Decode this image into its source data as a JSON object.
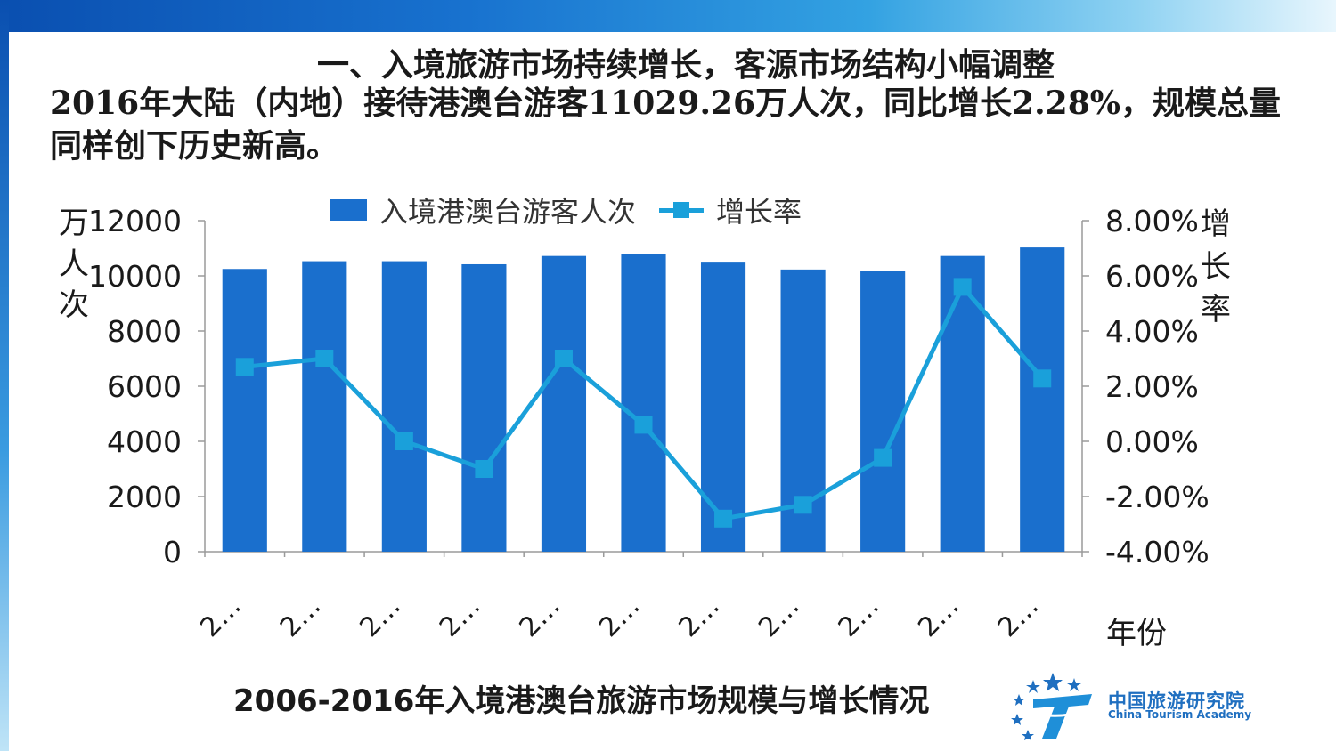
{
  "headline": "一、入境旅游市场持续增长，客源市场结构小幅调整",
  "subtext": "2016年大陆（内地）接待港澳台游客11029.26万人次，同比增长2.28%，规模总量同样创下历史新高。",
  "caption": "2006-2016年入境港澳台旅游市场规模与增长情况",
  "logo": {
    "cn": "中国旅游研究院",
    "en": "China Tourism Academy"
  },
  "colors": {
    "bar": "#1a6fcd",
    "line": "#1aa0da",
    "axis": "#9a9a9a"
  },
  "chart_data": {
    "type": "bar",
    "ylabel": "万人次",
    "y2label": "增长率",
    "xlabel": "年份",
    "ylim": [
      0,
      12000
    ],
    "y2lim": [
      -4,
      8
    ],
    "yticks": [
      "0",
      "2000",
      "4000",
      "6000",
      "8000",
      "10000",
      "12000"
    ],
    "y2ticks": [
      "-4.00%",
      "-2.00%",
      "0.00%",
      "2.00%",
      "4.00%",
      "6.00%",
      "8.00%"
    ],
    "categories": [
      "2…",
      "2…",
      "2…",
      "2…",
      "2…",
      "2…",
      "2…",
      "2…",
      "2…",
      "2…",
      "2…"
    ],
    "series": [
      {
        "name": "入境港澳台游客人次",
        "type": "bar",
        "values": [
          10250,
          10530,
          10530,
          10420,
          10720,
          10800,
          10480,
          10230,
          10180,
          10720,
          11029.26
        ]
      },
      {
        "name": "增长率",
        "type": "line",
        "axis": "right",
        "values": [
          2.7,
          3.0,
          0.0,
          -1.0,
          3.0,
          0.6,
          -2.8,
          -2.3,
          -0.6,
          5.6,
          2.28
        ]
      }
    ],
    "legend": "top",
    "grid": false
  }
}
